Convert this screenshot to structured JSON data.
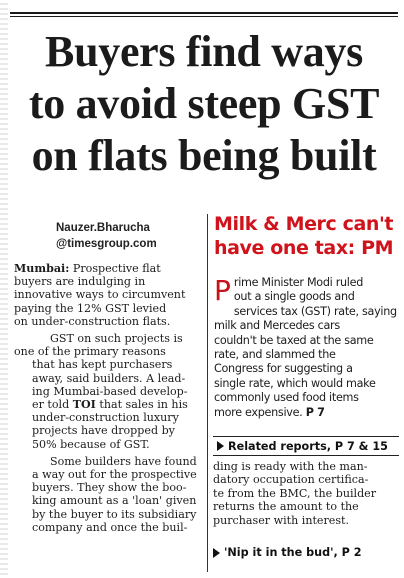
{
  "headline": {
    "line1": "Buyers find ways",
    "line2": "to avoid steep GST",
    "line3": "on flats being built"
  },
  "byline": {
    "author": "Nauzer.Bharucha",
    "email": "@timesgroup.com"
  },
  "story": {
    "dateline": "Mumbai:",
    "p1_l1": "Prospective flat",
    "p1_l2": "buyers are indulging in",
    "p1_l3": "innovative ways to circumvent",
    "p1_l4": "paying the 12% GST levied",
    "p1_l5": "on under-construction flats.",
    "p2_l1": "GST on such projects is",
    "p2_l2": "one of the primary reasons",
    "p2_l3": "that has kept purchasers",
    "p2_l4": "away, said builders. A lead-",
    "p2_l5": "ing Mumbai-based develop-",
    "p2_l6a": "er told",
    "p2_toi": "TOI",
    "p2_l6b": "that sales in his",
    "p2_l7": "under-construction luxury",
    "p2_l8": "projects have dropped by",
    "p2_l9": "50% because of GST.",
    "p3_l1": "Some builders have found",
    "p3_l2": "a way out for the prospective",
    "p3_l3": "buyers. They show the boo-",
    "p3_l4": "king amount as a 'loan' given",
    "p3_l5": "by the buyer to its subsidiary",
    "p3_l6": "company and once the buil-"
  },
  "sidebar": {
    "title_line1": "Milk & Merc can't",
    "title_line2": "have one tax: PM",
    "dropcap": "P",
    "b_l1": "rime Minister Modi ruled",
    "b_l2": "out a single goods and",
    "b_l3": "services tax (GST) rate, saying",
    "b_l4": "milk and Mercedes cars",
    "b_l5": "couldn't be taxed at the same",
    "b_l6": "rate, and slammed the",
    "b_l7": "Congress for suggesting a",
    "b_l8": "single rate, which would make",
    "b_l9": "commonly used food items",
    "b_l10": "more expensive.",
    "b_ref": "P 7"
  },
  "related": {
    "label": "Related reports, P 7 & 15"
  },
  "continuation": {
    "l1": "ding is ready with the man-",
    "l2": "datory occupation certifica-",
    "l3": "te from the BMC, the builder",
    "l4": "returns the amount to the",
    "l5": "purchaser with interest."
  },
  "jump": {
    "label": "'Nip it in the bud', P 2"
  },
  "colors": {
    "accent_red": "#d0121b",
    "text": "#1c1c1c"
  }
}
